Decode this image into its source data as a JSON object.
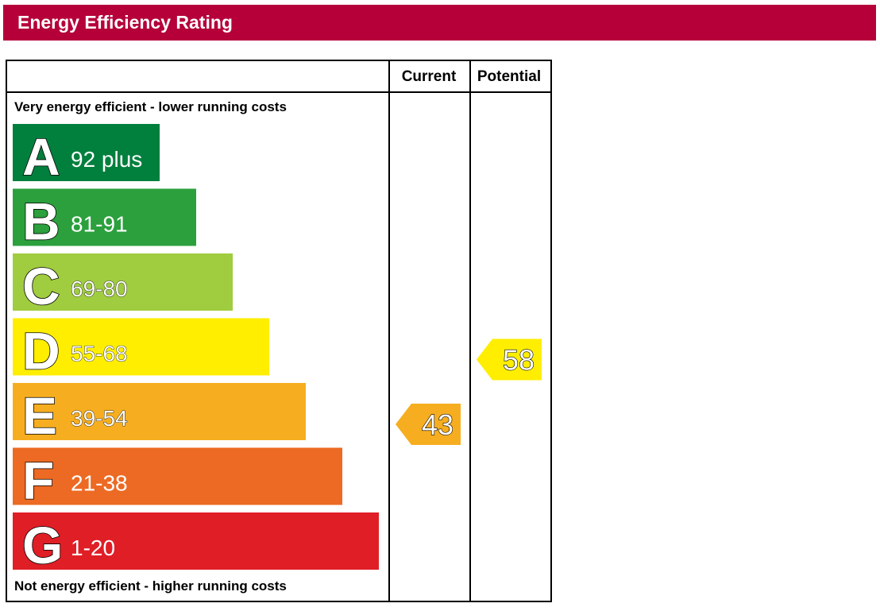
{
  "header": {
    "title": "Energy Efficiency Rating"
  },
  "columns": {
    "current": "Current",
    "potential": "Potential"
  },
  "notes": {
    "top": "Very energy efficient - lower running costs",
    "bottom": "Not energy efficient - higher running costs"
  },
  "chart_data": {
    "type": "bar",
    "title": "Energy Efficiency Rating",
    "bands": [
      {
        "letter": "A",
        "range": "92 plus",
        "color": "#007f3d"
      },
      {
        "letter": "B",
        "range": "81-91",
        "color": "#2ba03d"
      },
      {
        "letter": "C",
        "range": "69-80",
        "color": "#a0cc3f"
      },
      {
        "letter": "D",
        "range": "55-68",
        "color": "#ffee00"
      },
      {
        "letter": "E",
        "range": "39-54",
        "color": "#f6ae20"
      },
      {
        "letter": "F",
        "range": "21-38",
        "color": "#ec6a23"
      },
      {
        "letter": "G",
        "range": "1-20",
        "color": "#e01e26"
      }
    ],
    "ratings": {
      "current": {
        "value": 43,
        "band": "E",
        "color": "#f6ae20"
      },
      "potential": {
        "value": 58,
        "band": "D",
        "color": "#ffee00"
      }
    }
  }
}
